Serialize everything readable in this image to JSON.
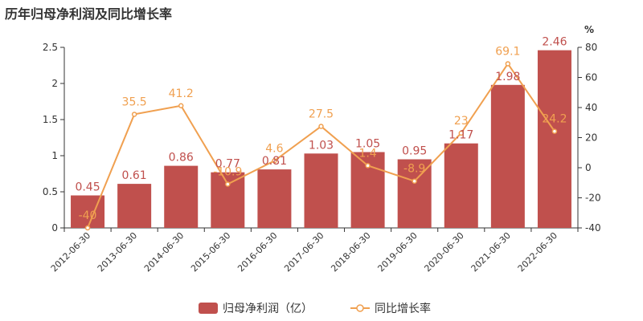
{
  "title": "历年归母净利润及同比增长率",
  "chart_data": {
    "type": "bar",
    "categories": [
      "2012-06-30",
      "2013-06-30",
      "2014-06-30",
      "2015-06-30",
      "2016-06-30",
      "2017-06-30",
      "2018-06-30",
      "2019-06-30",
      "2020-06-30",
      "2021-06-30",
      "2022-06-30"
    ],
    "series": [
      {
        "name": "归母净利润（亿）",
        "type": "bar",
        "axis": "left",
        "values": [
          0.45,
          0.61,
          0.86,
          0.77,
          0.81,
          1.03,
          1.05,
          0.95,
          1.17,
          1.98,
          2.46
        ],
        "labels": [
          "0.45",
          "0.61",
          "0.86",
          "0.77",
          "0.81",
          "1.03",
          "1.05",
          "0.95",
          "1.17",
          "1.98",
          "2.46"
        ]
      },
      {
        "name": "同比增长率",
        "type": "line",
        "axis": "right",
        "values": [
          -40,
          35.5,
          41.2,
          -10.9,
          4.6,
          27.5,
          1.4,
          -8.9,
          23,
          69.1,
          24.2
        ],
        "labels": [
          "-40",
          "35.5",
          "41.2",
          "-10.9",
          "4.6",
          "27.5",
          "1.4",
          "-8.9",
          "23",
          "69.1",
          "24.2"
        ]
      }
    ],
    "y_left": {
      "ylim": [
        0,
        2.5
      ],
      "ticks": [
        "0",
        "0.5",
        "1",
        "1.5",
        "2",
        "2.5"
      ]
    },
    "y_right": {
      "ylim": [
        -40,
        80
      ],
      "ticks": [
        "-40",
        "-20",
        "0",
        "20",
        "40",
        "60",
        "80"
      ],
      "unit": "%"
    },
    "grid": false,
    "legend_position": "bottom-center",
    "colors": {
      "bar": "#c0504d",
      "line": "#f0a050"
    }
  }
}
